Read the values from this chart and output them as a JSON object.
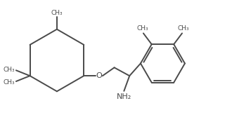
{
  "bg_color": "#ffffff",
  "bond_color": "#4a4a4a",
  "text_color": "#4a4a4a",
  "lw": 1.4,
  "figsize": [
    3.57,
    1.74
  ],
  "dpi": 100,
  "xlim": [
    0,
    357
  ],
  "ylim": [
    0,
    174
  ]
}
